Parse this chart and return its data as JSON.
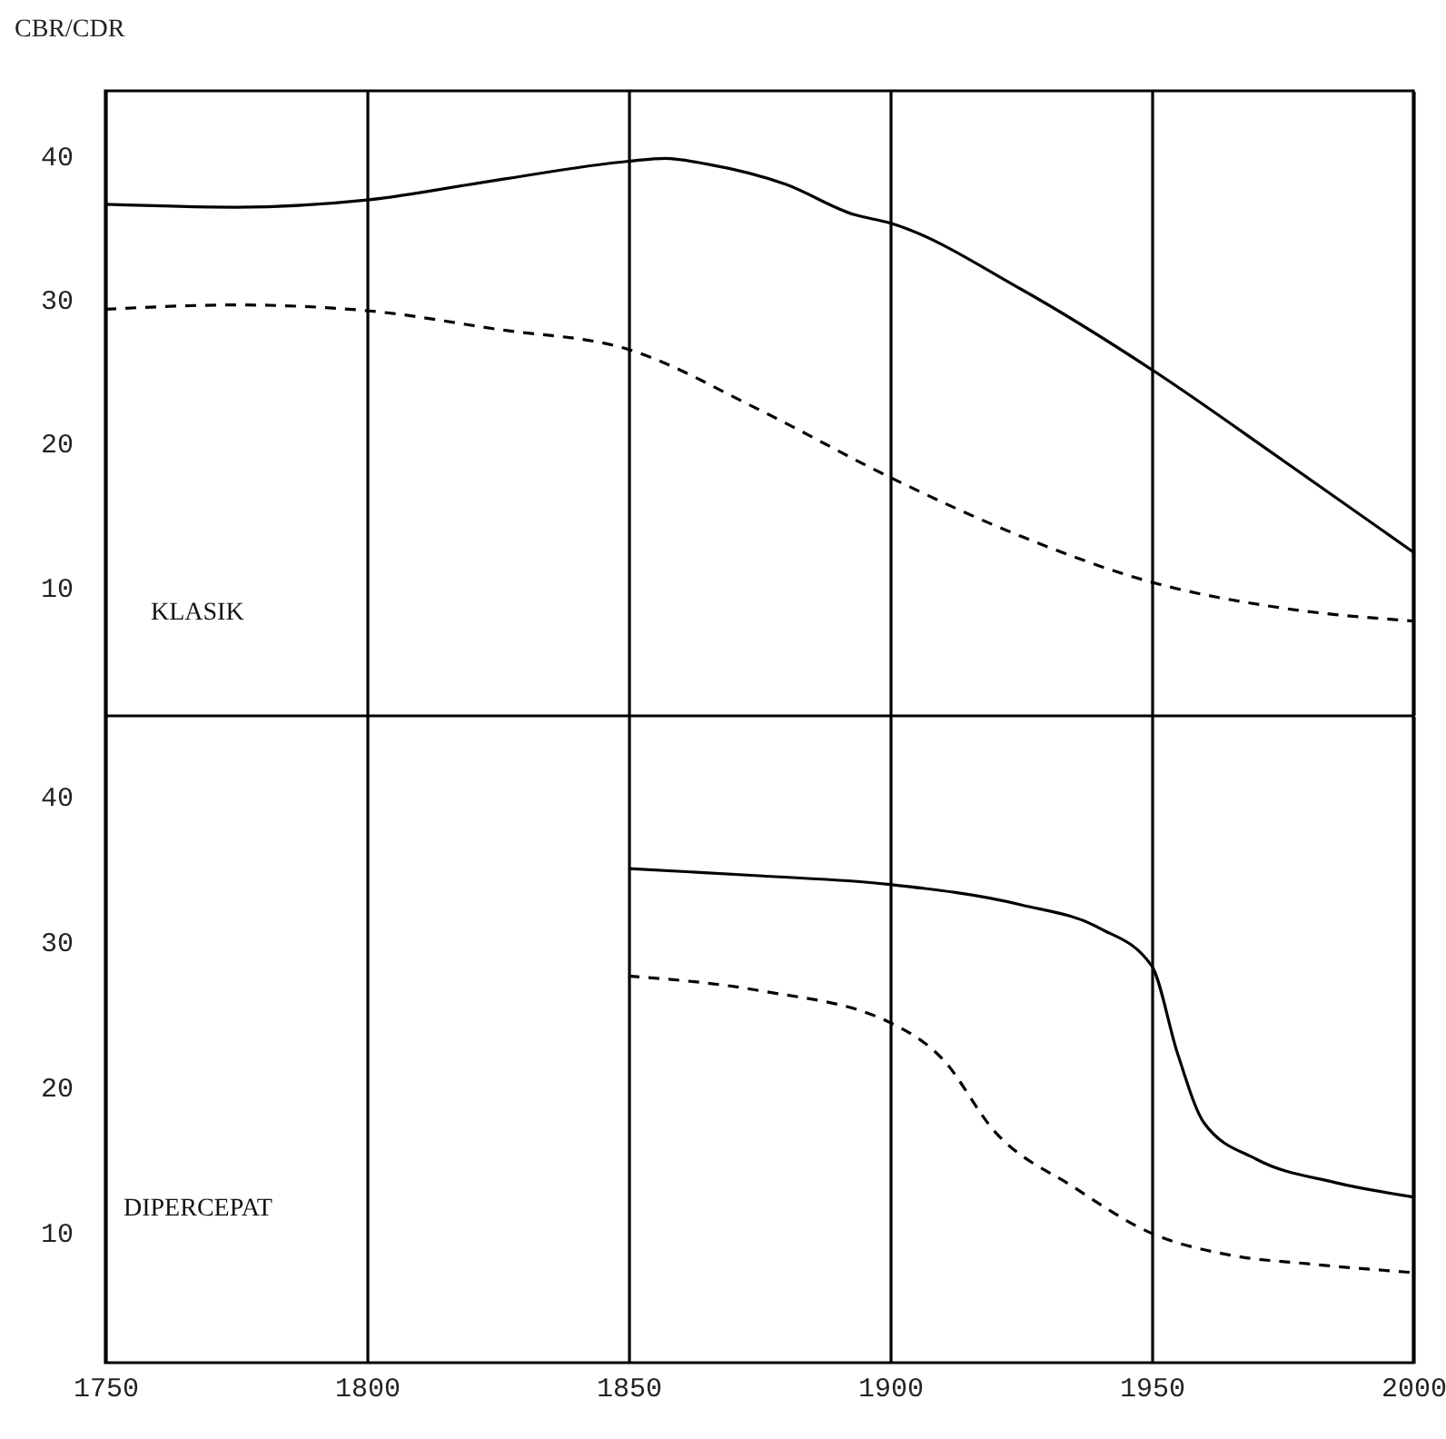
{
  "chart_data": [
    {
      "type": "line",
      "ylabel": "CBR/CDR",
      "annotations": [
        "KLASIK"
      ],
      "xlim": [
        1750,
        2000
      ],
      "xticks": [
        1750,
        1800,
        1850,
        1900,
        1950,
        2000
      ],
      "ylim": [
        1,
        44.5
      ],
      "yticks": [
        10,
        20,
        30,
        40
      ],
      "grid": "x",
      "tick_labels": "y",
      "series": [
        {
          "color": "#000000",
          "line_style": "solid",
          "x": [
            1750,
            1775,
            1800,
            1825,
            1850,
            1857,
            1865,
            1880,
            1893,
            1900,
            1925,
            1950,
            1975,
            2000
          ],
          "values": [
            36.6,
            36.4,
            36.9,
            38.3,
            39.6,
            39.8,
            39.4,
            38,
            35.9,
            35.3,
            30.7,
            25.1,
            18.8,
            12.4
          ]
        },
        {
          "color": "#000000",
          "line_style": "dashed",
          "x": [
            1750,
            1775,
            1800,
            1825,
            1850,
            1875,
            1900,
            1925,
            1950,
            1975,
            2000
          ],
          "values": [
            29.3,
            29.6,
            29.2,
            27.9,
            26.5,
            22.3,
            17.6,
            13.5,
            10.3,
            8.5,
            7.6
          ]
        }
      ]
    },
    {
      "type": "line",
      "annotations": [
        "DIPERCEPAT"
      ],
      "xlim": [
        1750,
        2000
      ],
      "xticks": [
        1750,
        1800,
        1850,
        1900,
        1950,
        2000
      ],
      "ylim": [
        1,
        45.5
      ],
      "yticks": [
        10,
        20,
        30,
        40
      ],
      "grid": "x",
      "series": [
        {
          "color": "#000000",
          "line_style": "solid",
          "x": [
            1850,
            1875,
            1900,
            1925,
            1940,
            1950,
            1955,
            1960,
            1970,
            1985,
            2000
          ],
          "values": [
            35,
            34.5,
            33.9,
            32.5,
            30.9,
            28.3,
            22.2,
            17.5,
            15,
            13.4,
            12.4
          ]
        },
        {
          "color": "#000000",
          "line_style": "dashed",
          "x": [
            1850,
            1875,
            1900,
            1910,
            1920,
            1935,
            1950,
            1965,
            1980,
            2000
          ],
          "values": [
            27.6,
            26.6,
            24.4,
            21.9,
            16.9,
            13.1,
            9.9,
            8.4,
            7.8,
            7.2
          ]
        }
      ]
    }
  ]
}
